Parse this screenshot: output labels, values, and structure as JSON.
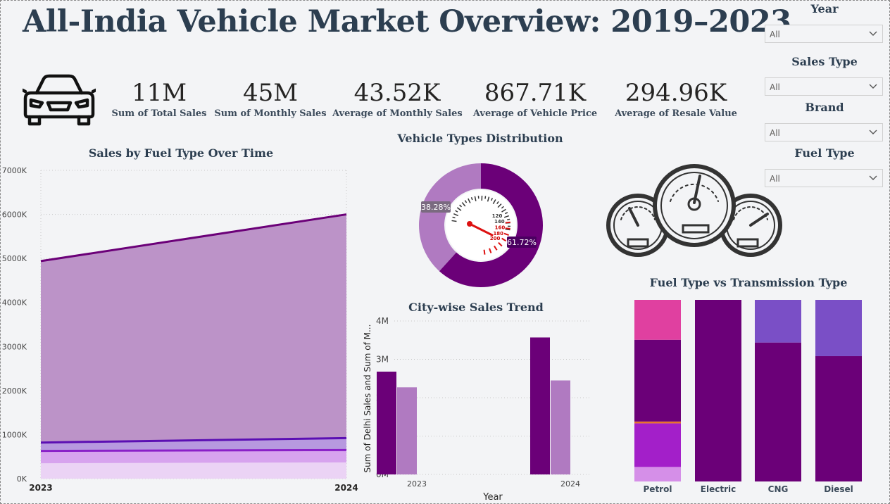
{
  "title": "All-India Vehicle Market Overview: 2019–2023",
  "icons": {
    "car": "car-front-icon",
    "gauges": "speedometer-cluster-icon",
    "chevron": "chevron-down-icon"
  },
  "kpis": [
    {
      "value": "11M",
      "label": "Sum of Total Sales"
    },
    {
      "value": "45M",
      "label": "Sum of Monthly Sales"
    },
    {
      "value": "43.52K",
      "label": "Average of Monthly Sales"
    },
    {
      "value": "867.71K",
      "label": "Average of Vehicle Price"
    },
    {
      "value": "294.96K",
      "label": "Average of Resale Value"
    }
  ],
  "filters": [
    {
      "label": "Year",
      "value": "All"
    },
    {
      "label": "Sales Type",
      "value": "All"
    },
    {
      "label": "Brand",
      "value": "All"
    },
    {
      "label": "Fuel Type",
      "value": "All"
    }
  ],
  "colors": {
    "dark_purple": "#6b0078",
    "mid_purple": "#b07ac1",
    "violet": "#7a4fc6",
    "bright_purple": "#a31fc9",
    "pink": "#e040a0",
    "lilac": "#d7a3ee",
    "orange": "#e8742a"
  },
  "chart_data": [
    {
      "type": "area",
      "title": "Sales by Fuel Type Over Time",
      "x": [
        "2023",
        "2024"
      ],
      "ylim": [
        0,
        7000
      ],
      "yticks": [
        "0K",
        "1000K",
        "2000K",
        "3000K",
        "4000K",
        "5000K",
        "6000K",
        "7000K"
      ],
      "grid": true,
      "series": [
        {
          "values": [
            350,
            370
          ],
          "color": "#ebd3f5"
        },
        {
          "values": [
            630,
            650
          ],
          "color": "#d7a3ee",
          "line": "#8a20c8"
        },
        {
          "values": [
            820,
            920
          ],
          "color": "#b799df",
          "line": "#5b0fb3"
        },
        {
          "values": [
            4940,
            6000
          ],
          "color": "#bc93c8",
          "line": "#6b0078"
        }
      ]
    },
    {
      "type": "pie",
      "title": "Vehicle Types Distribution",
      "slices": [
        {
          "value": 61.72,
          "label": "61.72%",
          "color": "#6b0078"
        },
        {
          "value": 38.28,
          "label": "38.28%",
          "color": "#b07ac1"
        }
      ],
      "speedo_marks": [
        "120",
        "140",
        "160",
        "180",
        "200"
      ]
    },
    {
      "type": "bar",
      "title": "City-wise Sales Trend",
      "xlabel": "Year",
      "ylabel": "Sum of Delhi Sales and Sum of M...",
      "categories": [
        "2023",
        "2024"
      ],
      "ylim": [
        0,
        4
      ],
      "yticks": [
        "0M",
        "1M",
        "2M",
        "3M",
        "4M"
      ],
      "series": [
        {
          "values": [
            2.68,
            3.57
          ],
          "color": "#6b0078"
        },
        {
          "values": [
            2.27,
            2.45
          ],
          "color": "#b07ac1"
        }
      ]
    },
    {
      "type": "bar",
      "title": "Fuel Type vs Transmission Type",
      "stacked": "100%",
      "categories": [
        "Petrol",
        "Electric",
        "CNG",
        "Diesel"
      ],
      "stacks": [
        [
          {
            "value": 8,
            "color": "#d58fe8"
          },
          {
            "value": 24,
            "color": "#a31fc9"
          },
          {
            "value": 1,
            "color": "#e8742a"
          },
          {
            "value": 45,
            "color": "#6b0078"
          },
          {
            "value": 22,
            "color": "#e040a0"
          }
        ],
        [
          {
            "value": 100,
            "color": "#6b0078"
          }
        ],
        [
          {
            "value": 76.5,
            "color": "#6b0078"
          },
          {
            "value": 23.5,
            "color": "#7a4fc6"
          }
        ],
        [
          {
            "value": 69,
            "color": "#6b0078"
          },
          {
            "value": 31,
            "color": "#7a4fc6"
          }
        ]
      ]
    }
  ]
}
